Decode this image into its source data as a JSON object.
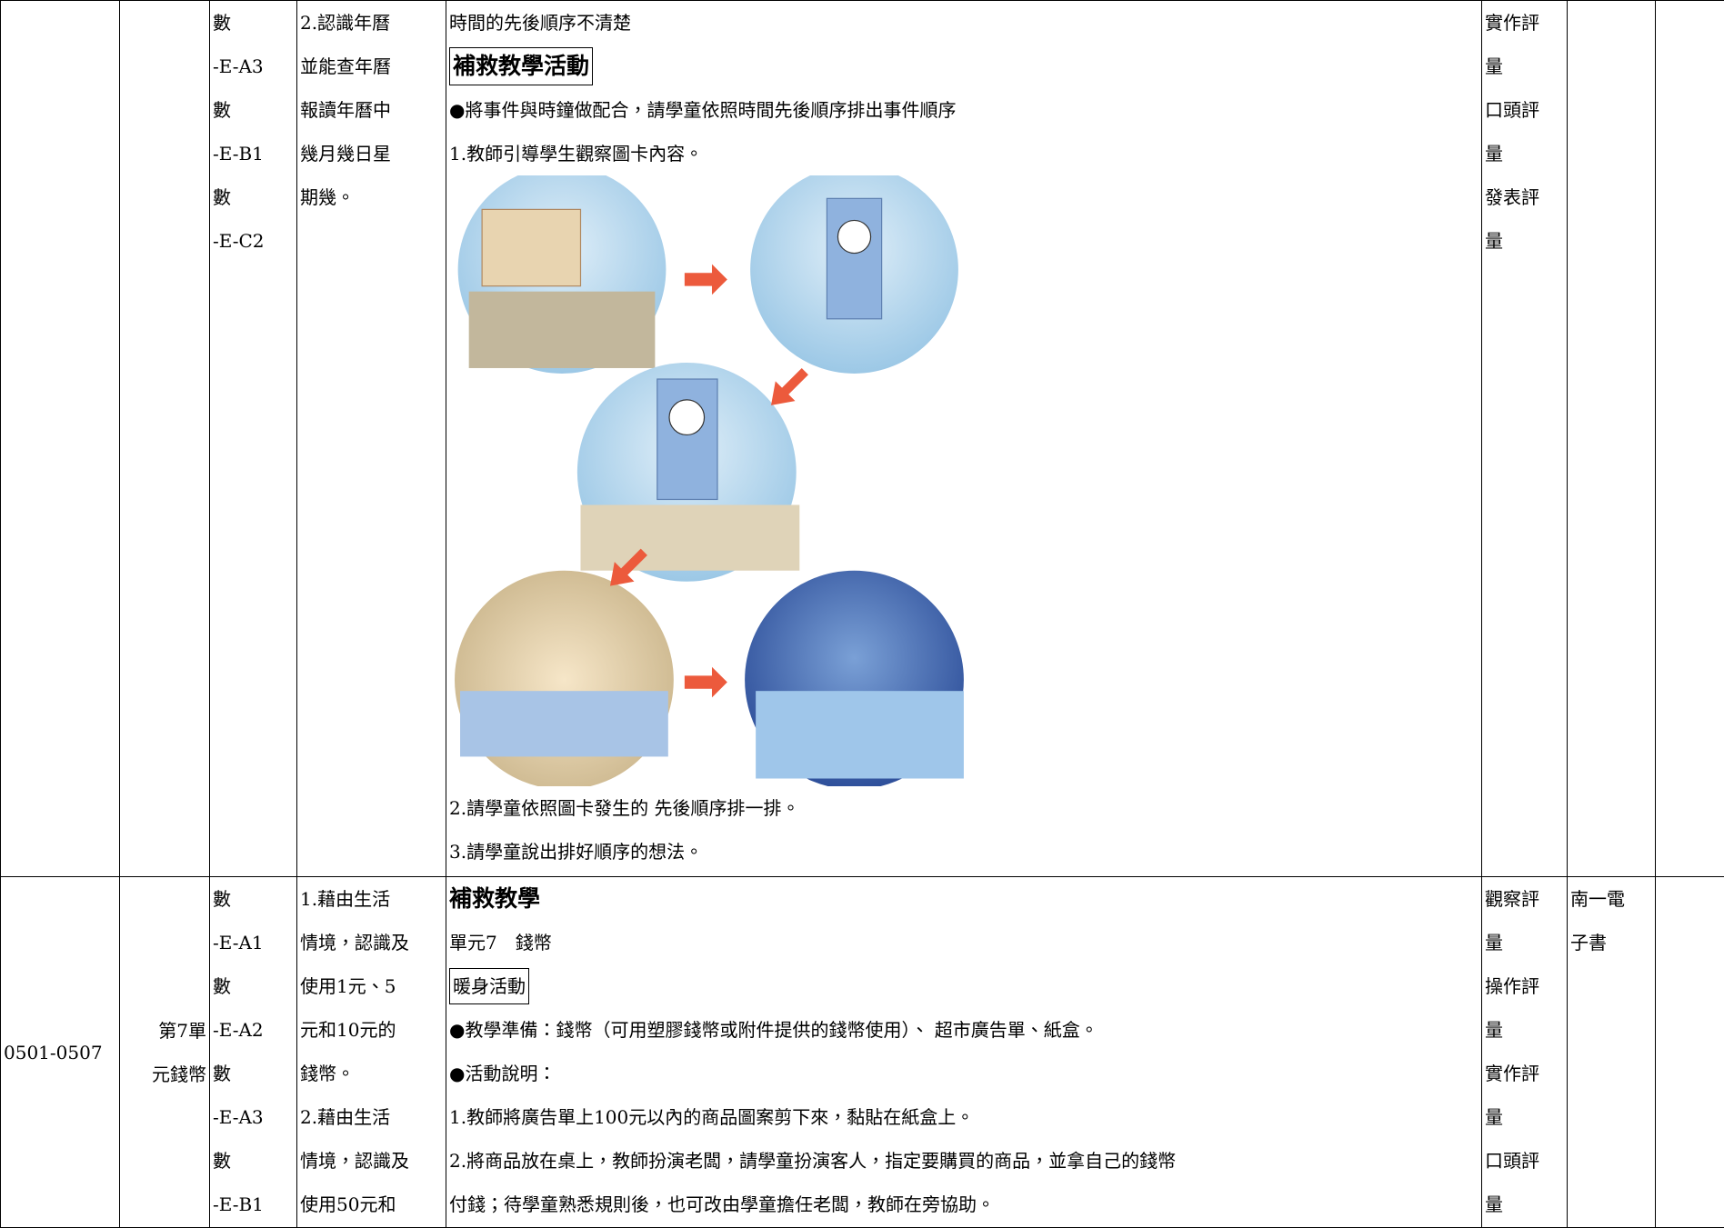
{
  "table": {
    "rows": [
      {
        "indicators": [
          "數",
          "-E-A3",
          "數",
          "-E-B1",
          "數",
          "-E-C2"
        ],
        "objectives": [
          "2.認識年曆",
          "並能查年曆",
          "報讀年曆中",
          "幾月幾日星",
          "期幾。"
        ],
        "content": {
          "problem": "時間的先後順序不清楚",
          "heading": "補救教學活動",
          "lines_before": [
            "●將事件與時鐘做配合，請學童依照時間先後順序排出事件順序",
            "1.教師引導學生觀察圖卡內容。"
          ],
          "lines_after": [
            "2.請學童依照圖卡發生的 先後順序排一排。",
            "3.請學童說出排好順序的想法。"
          ]
        },
        "assessment": [
          "實作評",
          "量",
          "口頭評",
          "量",
          "發表評",
          "量"
        ]
      },
      {
        "date": "0501-0507",
        "unit": [
          "第7單",
          "元錢幣"
        ],
        "indicators": [
          "數",
          "-E-A1",
          "數",
          "-E-A2",
          "數",
          "-E-A3",
          "數",
          "-E-B1"
        ],
        "objectives": [
          "1.藉由生活",
          "情境，認識及",
          "使用1元、5",
          "元和10元的",
          "錢幣。",
          "2.藉由生活",
          "情境，認識及",
          "使用50元和"
        ],
        "content": {
          "heading": "補救教學",
          "unit_line": "單元7　錢幣",
          "warmup": "暖身活動",
          "lines": [
            "●教學準備：錢幣（可用塑膠錢幣或附件提供的錢幣使用）、 超市廣告單、紙盒。",
            "●活動說明：",
            "1.教師將廣告單上100元以內的商品圖案剪下來，黏貼在紙盒上。",
            "2.將商品放在桌上，教師扮演老闆，請學童扮演客人，指定要購買的商品，並拿自己的錢幣",
            "付錢；待學童熟悉規則後，也可改由學童擔任老闆，教師在旁協助。"
          ]
        },
        "assessment": [
          "觀察評",
          "量",
          "操作評",
          "量",
          "實作評",
          "量",
          "口頭評",
          "量"
        ],
        "resources": [
          "南一電",
          "子書"
        ]
      }
    ]
  }
}
